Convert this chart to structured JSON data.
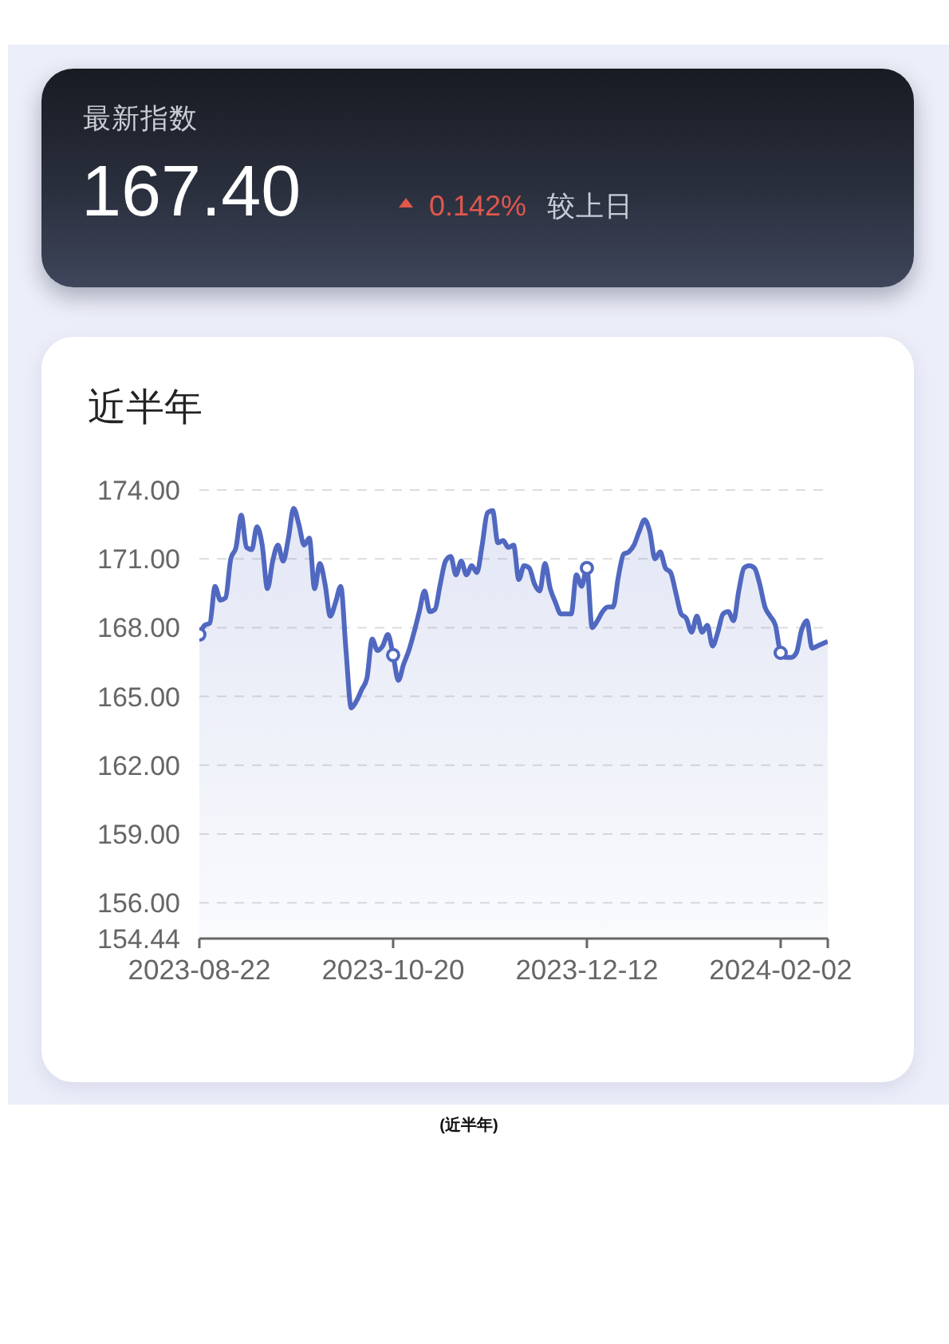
{
  "chart_data": [
    {
      "type": "other",
      "title": "最新指数",
      "annotations": [
        "167.40",
        "0.142%",
        "较上日"
      ]
    },
    {
      "type": "area",
      "title": "近半年",
      "grid": "y",
      "annotations": [
        "(近半年)"
      ],
      "ylim": [
        154.44,
        174
      ],
      "yticks": [
        154.44,
        {
          "value": 156,
          "label": "156.00"
        },
        {
          "value": 159,
          "label": "159.00"
        },
        {
          "value": 162,
          "label": "162.00"
        },
        {
          "value": 165,
          "label": "165.00"
        },
        {
          "value": 168,
          "label": "168.00"
        },
        {
          "value": 171,
          "label": "171.00"
        },
        {
          "value": 174,
          "label": "174.00"
        }
      ],
      "categories": [
        "2023-08-22",
        null,
        null,
        null,
        null,
        null,
        null,
        null,
        null,
        null,
        null,
        null,
        null,
        null,
        null,
        null,
        null,
        null,
        null,
        null,
        null,
        null,
        null,
        null,
        null,
        null,
        null,
        null,
        null,
        null,
        null,
        null,
        null,
        null,
        null,
        null,
        null,
        "2023-10-20",
        null,
        null,
        null,
        null,
        null,
        null,
        null,
        null,
        null,
        null,
        null,
        null,
        null,
        null,
        null,
        null,
        null,
        null,
        null,
        null,
        null,
        null,
        null,
        null,
        null,
        null,
        null,
        null,
        null,
        null,
        null,
        null,
        null,
        null,
        null,
        null,
        "2023-12-12",
        null,
        null,
        null,
        null,
        null,
        null,
        null,
        null,
        null,
        null,
        null,
        null,
        null,
        null,
        null,
        null,
        null,
        null,
        null,
        null,
        null,
        null,
        null,
        null,
        null,
        null,
        null,
        null,
        null,
        null,
        null,
        null,
        null,
        null,
        null,
        null,
        "2024-02-02",
        null,
        null,
        null,
        null,
        null,
        null,
        null,
        null,
        null
      ],
      "series": [
        {
          "color": "#5068c0",
          "values": [
            167.7,
            168.1,
            168.2,
            169.8,
            169.2,
            169.3,
            171.0,
            171.5,
            172.9,
            171.5,
            171.4,
            172.4,
            171.6,
            169.7,
            170.9,
            171.6,
            170.9,
            171.9,
            173.2,
            172.5,
            171.6,
            171.9,
            169.7,
            170.8,
            169.9,
            168.5,
            169.1,
            169.8,
            167.0,
            164.5,
            164.8,
            165.3,
            165.8,
            167.5,
            167.0,
            167.2,
            167.7,
            166.8,
            165.7,
            166.4,
            167.0,
            167.8,
            168.7,
            169.6,
            168.7,
            168.8,
            169.9,
            170.9,
            171.1,
            170.3,
            170.9,
            170.3,
            170.7,
            170.4,
            171.6,
            173.0,
            173.1,
            171.7,
            171.8,
            171.5,
            171.6,
            170.1,
            170.7,
            170.6,
            169.9,
            169.6,
            170.8,
            169.7,
            169.1,
            168.6,
            168.6,
            168.6,
            170.3,
            169.8,
            170.6,
            168.0,
            168.3,
            168.7,
            168.9,
            168.9,
            170.2,
            171.2,
            171.3,
            171.6,
            172.2,
            172.7,
            172.2,
            171.0,
            171.3,
            170.6,
            170.4,
            169.5,
            168.6,
            168.4,
            167.8,
            168.5,
            167.8,
            168.1,
            167.2,
            167.8,
            168.6,
            168.7,
            168.3,
            169.6,
            170.6,
            170.7,
            170.6,
            169.9,
            168.9,
            168.5,
            168.1,
            166.9,
            166.7,
            166.7,
            166.9,
            167.9,
            168.3,
            167.1,
            167.2,
            167.3,
            167.4
          ]
        },
        {
          "type": "scatter",
          "color": "#5068c0",
          "marker": "circle",
          "values": [
            167.7,
            null,
            null,
            null,
            null,
            null,
            null,
            null,
            null,
            null,
            null,
            null,
            null,
            null,
            null,
            null,
            null,
            null,
            null,
            null,
            null,
            null,
            null,
            null,
            null,
            null,
            null,
            null,
            null,
            null,
            null,
            null,
            null,
            null,
            null,
            null,
            null,
            166.8,
            null,
            null,
            null,
            null,
            null,
            null,
            null,
            null,
            null,
            null,
            null,
            null,
            null,
            null,
            null,
            null,
            null,
            null,
            null,
            null,
            null,
            null,
            null,
            null,
            null,
            null,
            null,
            null,
            null,
            null,
            null,
            null,
            null,
            null,
            null,
            null,
            170.6,
            null,
            null,
            null,
            null,
            null,
            null,
            null,
            null,
            null,
            null,
            null,
            null,
            null,
            null,
            null,
            null,
            null,
            null,
            null,
            null,
            null,
            null,
            null,
            null,
            null,
            null,
            null,
            null,
            null,
            null,
            null,
            null,
            null,
            null,
            null,
            null,
            166.9,
            null,
            null,
            null,
            null,
            null,
            null,
            null,
            null,
            null
          ]
        }
      ]
    }
  ]
}
